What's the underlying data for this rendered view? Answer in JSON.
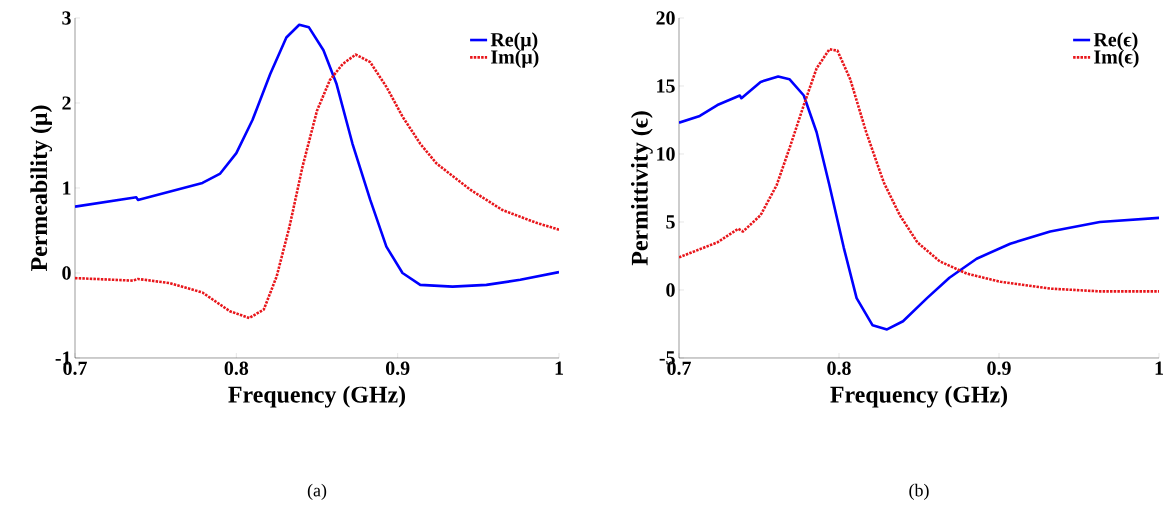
{
  "chart_data": [
    {
      "type": "line",
      "xlabel": "Frequency (GHz)",
      "ylabel": "Permeability (μ)",
      "xlim": [
        0.7,
        1
      ],
      "ylim": [
        -1,
        3
      ],
      "xticks": [
        0.7,
        0.8,
        0.9,
        1
      ],
      "yticks": [
        -1,
        0,
        1,
        2,
        3
      ],
      "legend": "top right",
      "grid": false,
      "annotations": [
        "(a)"
      ],
      "series": [
        {
          "name": "Re(μ)",
          "color": "#0000ff",
          "line_style": "solid",
          "x": [
            0.7,
            0.738,
            0.739,
            0.779,
            0.79,
            0.8,
            0.81,
            0.821,
            0.831,
            0.839,
            0.845,
            0.854,
            0.862,
            0.872,
            0.883,
            0.893,
            0.903,
            0.914,
            0.934,
            0.955,
            0.976,
            1.0
          ],
          "values": [
            0.78,
            0.89,
            0.86,
            1.06,
            1.17,
            1.41,
            1.8,
            2.34,
            2.77,
            2.92,
            2.89,
            2.62,
            2.23,
            1.52,
            0.86,
            0.31,
            0.0,
            -0.14,
            -0.16,
            -0.14,
            -0.08,
            0.01
          ]
        },
        {
          "name": "Im(μ)",
          "color": "#e8161b",
          "line_style": "dotted",
          "x": [
            0.7,
            0.736,
            0.739,
            0.759,
            0.779,
            0.796,
            0.808,
            0.817,
            0.825,
            0.833,
            0.841,
            0.85,
            0.858,
            0.866,
            0.874,
            0.883,
            0.893,
            0.903,
            0.914,
            0.924,
            0.945,
            0.965,
            0.986,
            1.0
          ],
          "values": [
            -0.06,
            -0.09,
            -0.07,
            -0.12,
            -0.23,
            -0.45,
            -0.53,
            -0.43,
            -0.04,
            0.55,
            1.25,
            1.91,
            2.27,
            2.46,
            2.57,
            2.48,
            2.19,
            1.84,
            1.52,
            1.29,
            0.98,
            0.74,
            0.59,
            0.51
          ]
        }
      ]
    },
    {
      "type": "line",
      "xlabel": "Frequency (GHz)",
      "ylabel": "Permittivity (ϵ)",
      "xlim": [
        0.7,
        1
      ],
      "ylim": [
        -5,
        20
      ],
      "xticks": [
        0.7,
        0.8,
        0.9,
        1
      ],
      "yticks": [
        -5,
        0,
        5,
        10,
        15,
        20
      ],
      "legend": "top right",
      "grid": false,
      "annotations": [
        "(b)"
      ],
      "series": [
        {
          "name": "Re(ϵ)",
          "color": "#0000ff",
          "line_style": "solid",
          "x": [
            0.7,
            0.713,
            0.724,
            0.738,
            0.739,
            0.751,
            0.762,
            0.769,
            0.778,
            0.786,
            0.794,
            0.803,
            0.811,
            0.821,
            0.83,
            0.84,
            0.855,
            0.869,
            0.886,
            0.907,
            0.932,
            0.963,
            1.0
          ],
          "values": [
            12.3,
            12.8,
            13.6,
            14.3,
            14.1,
            15.3,
            15.7,
            15.5,
            14.3,
            11.6,
            7.7,
            3.1,
            -0.6,
            -2.6,
            -2.9,
            -2.3,
            -0.6,
            0.9,
            2.3,
            3.4,
            4.3,
            5.0,
            5.3
          ]
        },
        {
          "name": "Im(ϵ)",
          "color": "#e8161b",
          "line_style": "dotted",
          "x": [
            0.7,
            0.724,
            0.737,
            0.74,
            0.751,
            0.761,
            0.769,
            0.778,
            0.786,
            0.794,
            0.799,
            0.807,
            0.817,
            0.828,
            0.838,
            0.849,
            0.863,
            0.88,
            0.901,
            0.932,
            0.963,
            1.0
          ],
          "values": [
            2.4,
            3.5,
            4.5,
            4.3,
            5.5,
            7.7,
            10.4,
            13.6,
            16.3,
            17.7,
            17.6,
            15.5,
            11.6,
            7.9,
            5.5,
            3.5,
            2.1,
            1.2,
            0.6,
            0.1,
            -0.1,
            -0.1
          ]
        }
      ]
    }
  ]
}
